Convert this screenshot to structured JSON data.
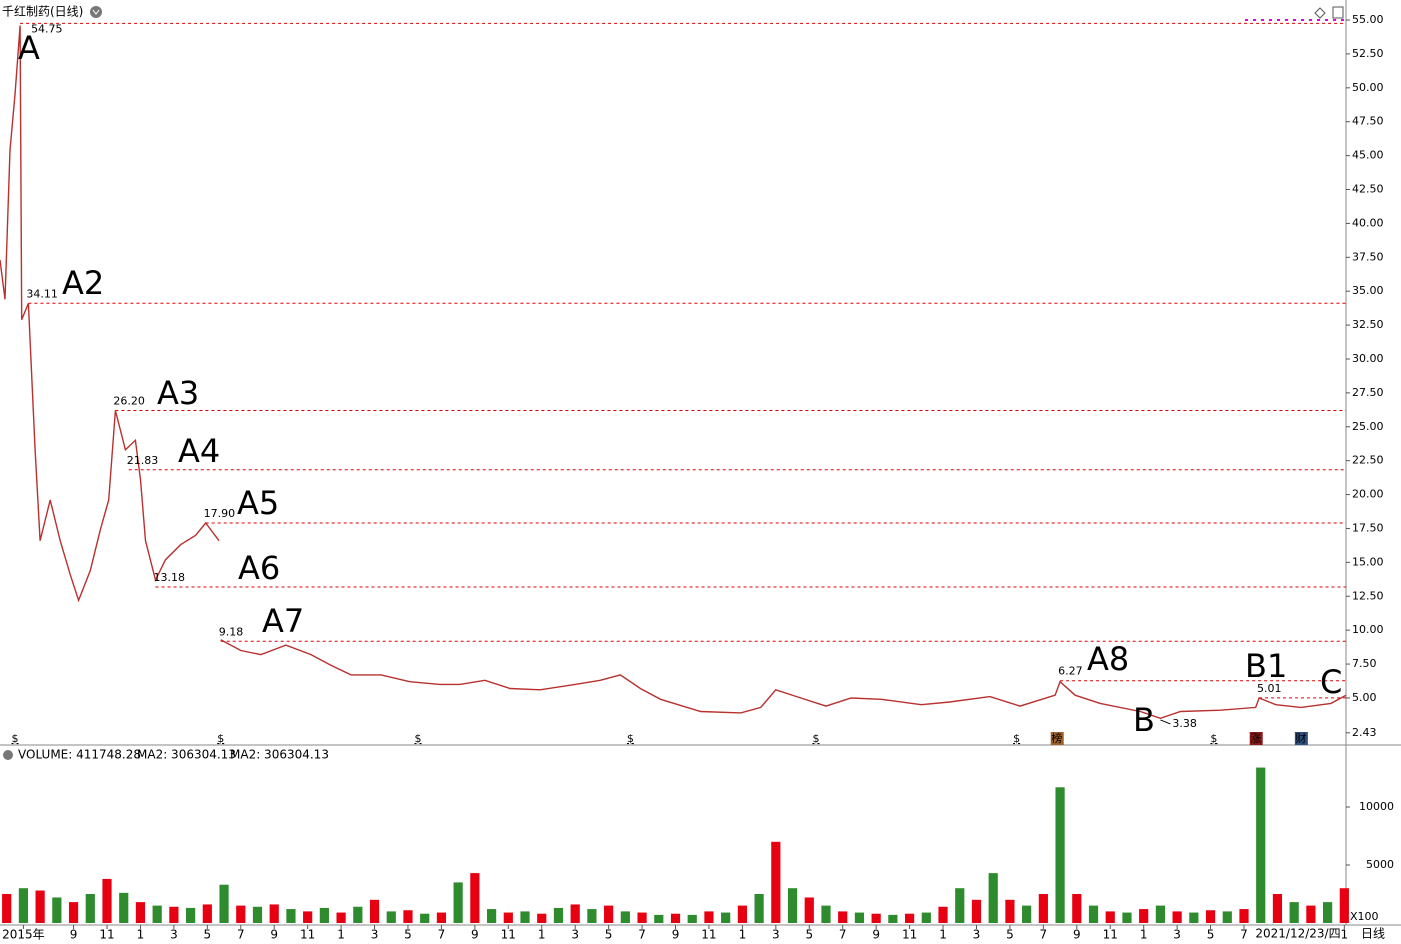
{
  "chart_data": [
    {
      "type": "line",
      "title": "千红制药(日线)",
      "x": [
        4.6,
        4.9,
        5.2,
        5.5,
        5.8,
        5.9,
        6.3,
        6.7,
        7.0,
        7.6,
        8.2,
        8.8,
        9.3,
        10.0,
        10.6,
        11.1,
        11.5,
        12.1,
        12.7,
        13.0,
        13.3,
        13.9,
        14.5,
        15.4,
        16.3,
        16.9,
        17.7,
        17.75,
        17.8,
        19.0,
        20.2,
        21.7,
        23.2,
        24.4,
        25.6,
        27.4,
        29.1,
        30.9,
        32.1,
        33.6,
        35.1,
        36.9,
        39.0,
        40.5,
        41.7,
        42.9,
        44.1,
        46.5,
        48.9,
        50.1,
        51.0,
        52.5,
        54.0,
        55.5,
        57.3,
        59.7,
        61.4,
        63.8,
        65.6,
        67.7,
        68.0,
        68.9,
        70.4,
        72.8,
        74.0,
        75.2,
        77.6,
        79.7,
        79.9,
        80.9,
        82.4,
        84.2,
        85.1
      ],
      "series": [
        {
          "color": "#b8312f",
          "values": [
            37.3,
            34.4,
            45.4,
            49.5,
            54.6,
            32.9,
            34.1,
            23.3,
            16.6,
            19.6,
            16.6,
            14.1,
            12.2,
            14.4,
            17.4,
            19.6,
            26.2,
            23.3,
            24.0,
            21.1,
            16.6,
            13.7,
            15.2,
            16.3,
            17.0,
            17.9,
            16.6,
            null,
            9.3,
            8.5,
            8.2,
            8.9,
            8.2,
            7.4,
            6.7,
            6.7,
            6.2,
            6.0,
            6.0,
            6.3,
            5.7,
            5.6,
            6.0,
            6.3,
            6.7,
            5.7,
            4.9,
            4.0,
            3.9,
            4.3,
            5.6,
            5.0,
            4.4,
            5.0,
            4.9,
            4.5,
            4.7,
            5.1,
            4.4,
            5.2,
            6.2,
            5.2,
            4.6,
            4.0,
            3.5,
            4.0,
            4.1,
            4.3,
            5.0,
            4.5,
            4.3,
            4.6,
            5.2
          ]
        }
      ],
      "xlim": [
        4.6,
        85.1
      ],
      "ylim": [
        1.53,
        55.74
      ],
      "yticks": [
        {
          "value": 2.43,
          "label": "2.43"
        },
        {
          "value": 5,
          "label": "5.00"
        },
        {
          "value": 7.5,
          "label": "7.50"
        },
        {
          "value": 10,
          "label": "10.00"
        },
        {
          "value": 12.5,
          "label": "12.50"
        },
        {
          "value": 15,
          "label": "15.00"
        },
        {
          "value": 17.5,
          "label": "17.50"
        },
        {
          "value": 20,
          "label": "20.00"
        },
        {
          "value": 22.5,
          "label": "22.50"
        },
        {
          "value": 25,
          "label": "25.00"
        },
        {
          "value": 27.5,
          "label": "27.50"
        },
        {
          "value": 30,
          "label": "30.00"
        },
        {
          "value": 32.5,
          "label": "32.50"
        },
        {
          "value": 35,
          "label": "35.00"
        },
        {
          "value": 37.5,
          "label": "37.50"
        },
        {
          "value": 40,
          "label": "40.00"
        },
        {
          "value": 42.5,
          "label": "42.50"
        },
        {
          "value": 45,
          "label": "45.00"
        },
        {
          "value": 47.5,
          "label": "47.50"
        },
        {
          "value": 50,
          "label": "50.00"
        },
        {
          "value": 52.5,
          "label": "52.50"
        },
        {
          "value": 55,
          "label": "55.00"
        }
      ],
      "annotation_color": "#e00000",
      "annotations": [
        {
          "letter": "A",
          "x": 5.8,
          "value": 54.75,
          "value_label": "54.75",
          "line": true
        },
        {
          "letter": "A2",
          "x": 6.3,
          "value": 34.11,
          "value_label": "34.11",
          "line": true
        },
        {
          "letter": "A3",
          "x": 11.5,
          "value": 26.2,
          "value_label": "26.20",
          "line": true
        },
        {
          "letter": "A4",
          "x": 12.3,
          "value": 21.83,
          "value_label": "21.83",
          "line": true
        },
        {
          "letter": "A5",
          "x": 16.9,
          "value": 17.9,
          "value_label": "17.90",
          "line": true
        },
        {
          "letter": "A6",
          "x": 13.9,
          "value": 13.18,
          "value_label": "13.18",
          "line": true
        },
        {
          "letter": "A7",
          "x": 17.8,
          "value": 9.18,
          "value_label": "9.18",
          "line": true
        },
        {
          "letter": "A8",
          "x": 68.0,
          "value": 6.27,
          "value_label": "6.27",
          "line": true
        },
        {
          "letter": "B",
          "x": 74.0,
          "value": 3.38,
          "value_label": "3.38",
          "line": false
        },
        {
          "letter": "B1",
          "x": 79.9,
          "value": 5.01,
          "value_label": "5.01",
          "line": true
        },
        {
          "letter": "C",
          "x": 85.1,
          "value": 5.2,
          "line": false
        }
      ],
      "event_markers": [
        {
          "label": "$",
          "x": 5.5,
          "color": "#e00000"
        },
        {
          "label": "$",
          "x": 17.8,
          "color": "#e00000"
        },
        {
          "label": "$",
          "x": 29.6,
          "color": "#e00000"
        },
        {
          "label": "$",
          "x": 42.3,
          "color": "#e00000"
        },
        {
          "label": "$",
          "x": 53.4,
          "color": "#e00000"
        },
        {
          "label": "$",
          "x": 65.4,
          "color": "#e00000"
        },
        {
          "label": "$",
          "x": 77.2,
          "color": "#e00000"
        },
        {
          "label": "榜",
          "x": 67.8,
          "color": "#a0622d"
        },
        {
          "label": "涨",
          "x": 79.7,
          "color": "#8b1a1a"
        },
        {
          "label": "财",
          "x": 82.4,
          "color": "#2f4f7f"
        }
      ]
    },
    {
      "type": "bar",
      "label": "VOLUME: 411748.28",
      "ma_label": "MA2: 306304.13",
      "ma_label2": "MA2: 306304.13",
      "ma_color": "#d000d0",
      "x": [
        5,
        6,
        7,
        8,
        9,
        10,
        11,
        12,
        13,
        14,
        15,
        16,
        17,
        18,
        19,
        20,
        21,
        22,
        23,
        24,
        25,
        26,
        27,
        28,
        29,
        30,
        31,
        32,
        33,
        34,
        35,
        36,
        37,
        38,
        39,
        40,
        41,
        42,
        43,
        44,
        45,
        46,
        47,
        48,
        49,
        50,
        51,
        52,
        53,
        54,
        55,
        56,
        57,
        58,
        59,
        60,
        61,
        62,
        63,
        64,
        65,
        66,
        67,
        68,
        69,
        70,
        71,
        72,
        73,
        74,
        75,
        76,
        77,
        78,
        79,
        80,
        81,
        82,
        83,
        84,
        85
      ],
      "values": [
        2500,
        3000,
        2800,
        2200,
        1800,
        2500,
        3800,
        2600,
        1800,
        1500,
        1400,
        1300,
        1600,
        3300,
        1500,
        1400,
        1600,
        1200,
        1000,
        1300,
        900,
        1400,
        2000,
        1000,
        1100,
        800,
        900,
        3500,
        4300,
        1200,
        900,
        1000,
        800,
        1300,
        1600,
        1200,
        1500,
        1000,
        900,
        700,
        800,
        700,
        1000,
        900,
        1500,
        2500,
        7000,
        3000,
        2200,
        1500,
        1000,
        900,
        800,
        700,
        800,
        900,
        1400,
        3000,
        2000,
        4300,
        2000,
        1500,
        2500,
        11700,
        2500,
        1500,
        1000,
        900,
        1200,
        1500,
        1000,
        900,
        1100,
        1000,
        1200,
        13400,
        2500,
        1800,
        1500,
        1800,
        3000
      ],
      "colors": [
        "#e60012",
        "#2e8b2e"
      ],
      "xlim": [
        4.6,
        85.1
      ],
      "ylim": [
        0,
        13880
      ],
      "yticks": [
        5000,
        10000
      ],
      "unit_label": "X100",
      "xticks": [
        {
          "value": 6,
          "label": "2015年"
        },
        9,
        11,
        {
          "value": 13,
          "label": "1"
        },
        {
          "value": 15,
          "label": "3"
        },
        {
          "value": 17,
          "label": "5"
        },
        {
          "value": 19,
          "label": "7"
        },
        {
          "value": 21,
          "label": "9"
        },
        {
          "value": 23,
          "label": "11"
        },
        {
          "value": 25,
          "label": "1"
        },
        {
          "value": 27,
          "label": "3"
        },
        {
          "value": 29,
          "label": "5"
        },
        {
          "value": 31,
          "label": "7"
        },
        {
          "value": 33,
          "label": "9"
        },
        {
          "value": 35,
          "label": "11"
        },
        {
          "value": 37,
          "label": "1"
        },
        {
          "value": 39,
          "label": "3"
        },
        {
          "value": 41,
          "label": "5"
        },
        {
          "value": 43,
          "label": "7"
        },
        {
          "value": 45,
          "label": "9"
        },
        {
          "value": 47,
          "label": "11"
        },
        {
          "value": 49,
          "label": "1"
        },
        {
          "value": 51,
          "label": "3"
        },
        {
          "value": 53,
          "label": "5"
        },
        {
          "value": 55,
          "label": "7"
        },
        {
          "value": 57,
          "label": "9"
        },
        {
          "value": 59,
          "label": "11"
        },
        {
          "value": 61,
          "label": "1"
        },
        {
          "value": 63,
          "label": "3"
        },
        {
          "value": 65,
          "label": "5"
        },
        {
          "value": 67,
          "label": "7"
        },
        {
          "value": 69,
          "label": "9"
        },
        {
          "value": 71,
          "label": "11"
        },
        {
          "value": 73,
          "label": "1"
        },
        {
          "value": 75,
          "label": "3"
        },
        {
          "value": 77,
          "label": "5"
        },
        {
          "value": 79,
          "label": "7"
        },
        {
          "value": 85,
          "label": "1"
        }
      ],
      "crosshair_label": "2021/12/23/四",
      "period_label": "日线"
    }
  ]
}
